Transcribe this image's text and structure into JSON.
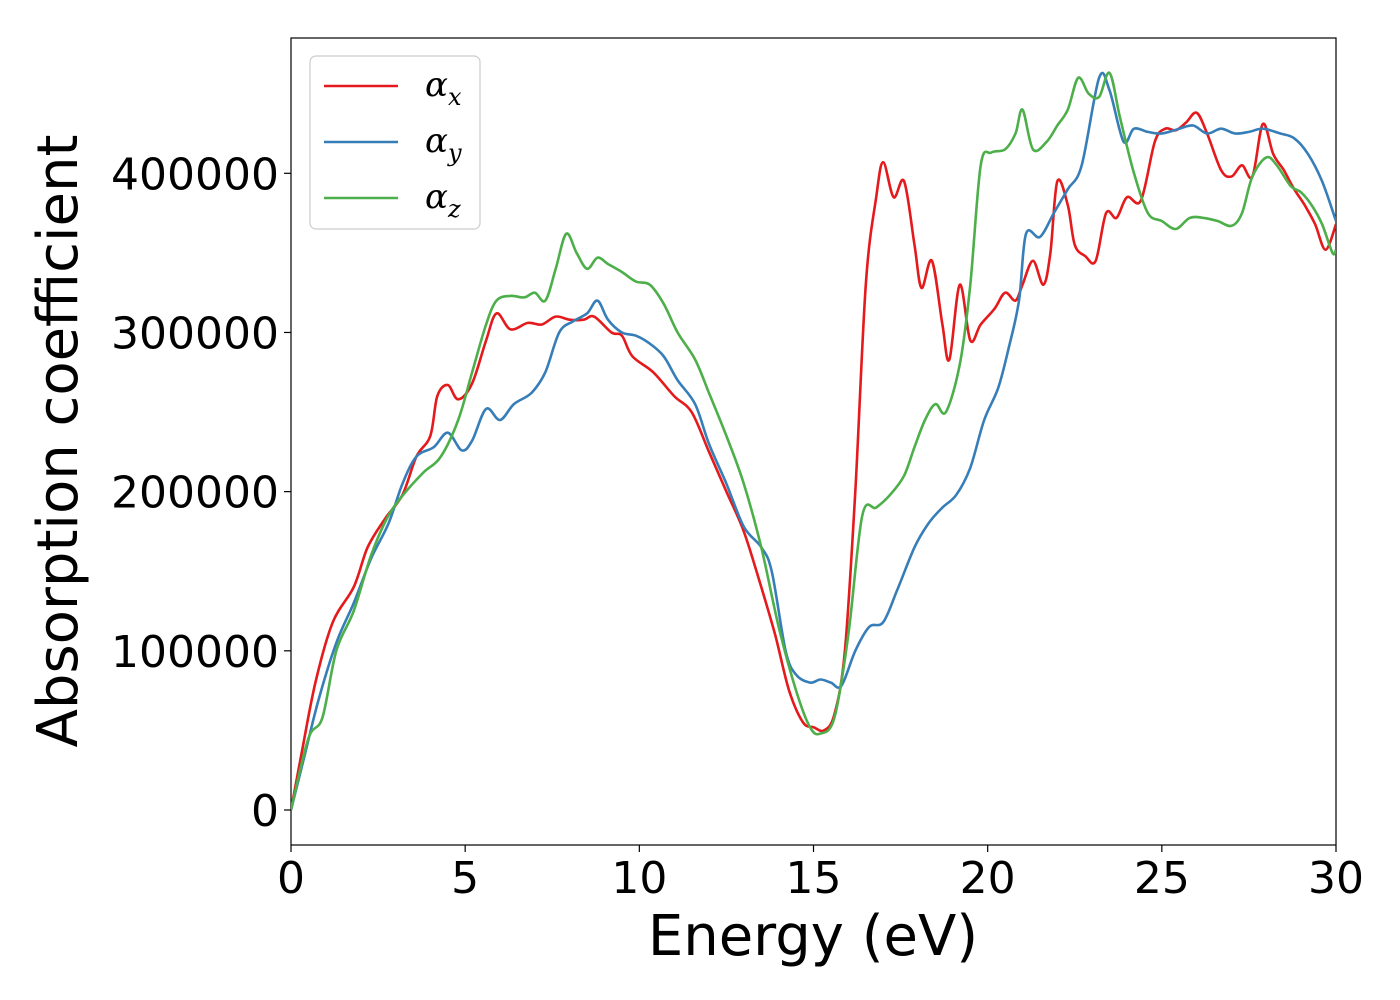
{
  "chart_data": {
    "type": "line",
    "xlabel": "Energy (eV)",
    "ylabel": "Absorption coefficient",
    "xlim": [
      0,
      30
    ],
    "ylim": [
      -22000,
      485000
    ],
    "xticks": [
      0,
      5,
      10,
      15,
      20,
      25,
      30
    ],
    "xtick_labels": [
      "0",
      "5",
      "10",
      "15",
      "20",
      "25",
      "30"
    ],
    "yticks": [
      0,
      100000,
      200000,
      300000,
      400000
    ],
    "ytick_labels": [
      "0",
      "100000",
      "200000",
      "300000",
      "400000"
    ],
    "grid": false,
    "legend_position": "top-left",
    "series": [
      {
        "name": "α_x",
        "legend_base": "α",
        "legend_sub": "x",
        "color": "#e41a1c",
        "points": [
          [
            0,
            0
          ],
          [
            0.3,
            35000
          ],
          [
            0.7,
            80000
          ],
          [
            1.2,
            118000
          ],
          [
            1.8,
            140000
          ],
          [
            2.2,
            165000
          ],
          [
            2.7,
            183000
          ],
          [
            3.2,
            198000
          ],
          [
            3.6,
            222000
          ],
          [
            4.0,
            235000
          ],
          [
            4.2,
            260000
          ],
          [
            4.5,
            267000
          ],
          [
            4.8,
            258000
          ],
          [
            5.2,
            268000
          ],
          [
            5.6,
            295000
          ],
          [
            5.9,
            312000
          ],
          [
            6.3,
            302000
          ],
          [
            6.8,
            306000
          ],
          [
            7.2,
            305000
          ],
          [
            7.6,
            310000
          ],
          [
            8.0,
            308000
          ],
          [
            8.4,
            308000
          ],
          [
            8.7,
            310000
          ],
          [
            9.2,
            300000
          ],
          [
            9.5,
            298000
          ],
          [
            9.8,
            285000
          ],
          [
            10.4,
            275000
          ],
          [
            11.0,
            260000
          ],
          [
            11.5,
            250000
          ],
          [
            12.0,
            225000
          ],
          [
            12.5,
            200000
          ],
          [
            13.0,
            175000
          ],
          [
            13.5,
            140000
          ],
          [
            13.9,
            110000
          ],
          [
            14.3,
            75000
          ],
          [
            14.7,
            55000
          ],
          [
            15.0,
            52000
          ],
          [
            15.3,
            50000
          ],
          [
            15.6,
            60000
          ],
          [
            15.9,
            100000
          ],
          [
            16.2,
            200000
          ],
          [
            16.5,
            330000
          ],
          [
            16.8,
            385000
          ],
          [
            17.0,
            407000
          ],
          [
            17.3,
            385000
          ],
          [
            17.6,
            395000
          ],
          [
            17.9,
            355000
          ],
          [
            18.1,
            328000
          ],
          [
            18.4,
            345000
          ],
          [
            18.7,
            305000
          ],
          [
            18.9,
            283000
          ],
          [
            19.2,
            330000
          ],
          [
            19.5,
            295000
          ],
          [
            19.8,
            305000
          ],
          [
            20.2,
            315000
          ],
          [
            20.5,
            325000
          ],
          [
            20.8,
            320000
          ],
          [
            21.0,
            330000
          ],
          [
            21.3,
            345000
          ],
          [
            21.6,
            330000
          ],
          [
            21.8,
            350000
          ],
          [
            22.0,
            395000
          ],
          [
            22.3,
            380000
          ],
          [
            22.5,
            355000
          ],
          [
            22.8,
            348000
          ],
          [
            23.1,
            345000
          ],
          [
            23.4,
            375000
          ],
          [
            23.7,
            372000
          ],
          [
            24.0,
            385000
          ],
          [
            24.4,
            383000
          ],
          [
            24.8,
            420000
          ],
          [
            25.1,
            428000
          ],
          [
            25.4,
            427000
          ],
          [
            25.7,
            432000
          ],
          [
            26.0,
            438000
          ],
          [
            26.3,
            425000
          ],
          [
            26.7,
            402000
          ],
          [
            27.0,
            398000
          ],
          [
            27.3,
            405000
          ],
          [
            27.6,
            398000
          ],
          [
            27.9,
            431000
          ],
          [
            28.2,
            412000
          ],
          [
            28.5,
            402000
          ],
          [
            28.8,
            390000
          ],
          [
            29.1,
            380000
          ],
          [
            29.4,
            368000
          ],
          [
            29.7,
            352000
          ],
          [
            30.0,
            368000
          ]
        ]
      },
      {
        "name": "α_y",
        "legend_base": "α",
        "legend_sub": "y",
        "color": "#377eb8",
        "points": [
          [
            0,
            0
          ],
          [
            0.4,
            35000
          ],
          [
            0.8,
            70000
          ],
          [
            1.3,
            105000
          ],
          [
            1.8,
            130000
          ],
          [
            2.3,
            158000
          ],
          [
            2.8,
            180000
          ],
          [
            3.2,
            205000
          ],
          [
            3.6,
            222000
          ],
          [
            4.1,
            228000
          ],
          [
            4.5,
            237000
          ],
          [
            4.9,
            226000
          ],
          [
            5.2,
            232000
          ],
          [
            5.6,
            252000
          ],
          [
            6.0,
            245000
          ],
          [
            6.4,
            255000
          ],
          [
            6.9,
            262000
          ],
          [
            7.3,
            275000
          ],
          [
            7.7,
            300000
          ],
          [
            8.1,
            307000
          ],
          [
            8.5,
            312000
          ],
          [
            8.8,
            320000
          ],
          [
            9.1,
            308000
          ],
          [
            9.5,
            300000
          ],
          [
            9.9,
            298000
          ],
          [
            10.3,
            293000
          ],
          [
            10.7,
            285000
          ],
          [
            11.1,
            270000
          ],
          [
            11.6,
            255000
          ],
          [
            12.0,
            230000
          ],
          [
            12.5,
            205000
          ],
          [
            13.0,
            178000
          ],
          [
            13.5,
            165000
          ],
          [
            13.8,
            150000
          ],
          [
            14.2,
            100000
          ],
          [
            14.5,
            85000
          ],
          [
            14.9,
            80000
          ],
          [
            15.2,
            82000
          ],
          [
            15.5,
            80000
          ],
          [
            15.8,
            78000
          ],
          [
            16.2,
            100000
          ],
          [
            16.6,
            115000
          ],
          [
            17.0,
            118000
          ],
          [
            17.4,
            138000
          ],
          [
            17.9,
            165000
          ],
          [
            18.3,
            180000
          ],
          [
            18.7,
            190000
          ],
          [
            19.1,
            198000
          ],
          [
            19.5,
            215000
          ],
          [
            19.9,
            245000
          ],
          [
            20.3,
            265000
          ],
          [
            20.6,
            290000
          ],
          [
            20.9,
            320000
          ],
          [
            21.1,
            362000
          ],
          [
            21.5,
            360000
          ],
          [
            21.9,
            375000
          ],
          [
            22.3,
            390000
          ],
          [
            22.7,
            405000
          ],
          [
            23.2,
            460000
          ],
          [
            23.5,
            452000
          ],
          [
            23.9,
            420000
          ],
          [
            24.2,
            428000
          ],
          [
            24.6,
            426000
          ],
          [
            25.0,
            425000
          ],
          [
            25.5,
            428000
          ],
          [
            25.9,
            430000
          ],
          [
            26.3,
            425000
          ],
          [
            26.7,
            428000
          ],
          [
            27.1,
            425000
          ],
          [
            27.5,
            426000
          ],
          [
            27.9,
            428000
          ],
          [
            28.4,
            425000
          ],
          [
            28.8,
            422000
          ],
          [
            29.2,
            412000
          ],
          [
            29.6,
            395000
          ],
          [
            30.0,
            370000
          ]
        ]
      },
      {
        "name": "α_z",
        "legend_base": "α",
        "legend_sub": "z",
        "color": "#4daf4a",
        "points": [
          [
            0,
            0
          ],
          [
            0.5,
            45000
          ],
          [
            0.9,
            58000
          ],
          [
            1.3,
            100000
          ],
          [
            1.8,
            125000
          ],
          [
            2.3,
            160000
          ],
          [
            2.8,
            185000
          ],
          [
            3.3,
            200000
          ],
          [
            3.8,
            212000
          ],
          [
            4.3,
            222000
          ],
          [
            4.8,
            245000
          ],
          [
            5.2,
            275000
          ],
          [
            5.6,
            305000
          ],
          [
            5.9,
            320000
          ],
          [
            6.3,
            323000
          ],
          [
            6.7,
            322000
          ],
          [
            7.0,
            325000
          ],
          [
            7.3,
            320000
          ],
          [
            7.6,
            340000
          ],
          [
            7.9,
            362000
          ],
          [
            8.2,
            350000
          ],
          [
            8.5,
            340000
          ],
          [
            8.8,
            347000
          ],
          [
            9.1,
            343000
          ],
          [
            9.5,
            338000
          ],
          [
            9.9,
            332000
          ],
          [
            10.3,
            330000
          ],
          [
            10.7,
            318000
          ],
          [
            11.1,
            300000
          ],
          [
            11.6,
            283000
          ],
          [
            12.0,
            262000
          ],
          [
            12.5,
            235000
          ],
          [
            13.0,
            205000
          ],
          [
            13.5,
            165000
          ],
          [
            14.0,
            115000
          ],
          [
            14.5,
            75000
          ],
          [
            14.9,
            52000
          ],
          [
            15.2,
            48000
          ],
          [
            15.6,
            58000
          ],
          [
            16.0,
            110000
          ],
          [
            16.4,
            185000
          ],
          [
            16.8,
            190000
          ],
          [
            17.2,
            198000
          ],
          [
            17.6,
            210000
          ],
          [
            17.9,
            228000
          ],
          [
            18.2,
            245000
          ],
          [
            18.5,
            255000
          ],
          [
            18.8,
            250000
          ],
          [
            19.2,
            280000
          ],
          [
            19.5,
            330000
          ],
          [
            19.8,
            405000
          ],
          [
            20.1,
            413000
          ],
          [
            20.5,
            415000
          ],
          [
            20.8,
            425000
          ],
          [
            21.0,
            440000
          ],
          [
            21.3,
            415000
          ],
          [
            21.7,
            420000
          ],
          [
            22.0,
            430000
          ],
          [
            22.3,
            440000
          ],
          [
            22.6,
            460000
          ],
          [
            22.9,
            450000
          ],
          [
            23.2,
            448000
          ],
          [
            23.5,
            463000
          ],
          [
            23.8,
            435000
          ],
          [
            24.2,
            400000
          ],
          [
            24.6,
            375000
          ],
          [
            25.0,
            370000
          ],
          [
            25.4,
            365000
          ],
          [
            25.8,
            372000
          ],
          [
            26.2,
            372000
          ],
          [
            26.6,
            370000
          ],
          [
            27.0,
            367000
          ],
          [
            27.3,
            375000
          ],
          [
            27.6,
            398000
          ],
          [
            28.0,
            410000
          ],
          [
            28.3,
            405000
          ],
          [
            28.7,
            392000
          ],
          [
            29.0,
            388000
          ],
          [
            29.3,
            380000
          ],
          [
            29.6,
            368000
          ],
          [
            29.9,
            350000
          ],
          [
            30.0,
            352000
          ]
        ]
      }
    ]
  }
}
